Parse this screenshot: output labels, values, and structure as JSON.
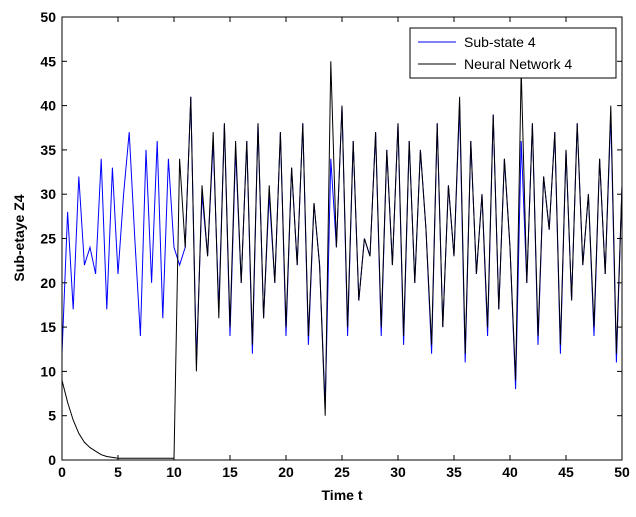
{
  "chart_data": {
    "type": "line",
    "xlabel": "Time t",
    "ylabel": "Sub-etaye Z4",
    "x": [
      0,
      0.5,
      1,
      1.5,
      2,
      2.5,
      3,
      3.5,
      4,
      4.5,
      5,
      5.5,
      6,
      6.5,
      7,
      7.5,
      8,
      8.5,
      9,
      9.5,
      10,
      10.5,
      11,
      11.5,
      12,
      12.5,
      13,
      13.5,
      14,
      14.5,
      15,
      15.5,
      16,
      16.5,
      17,
      17.5,
      18,
      18.5,
      19,
      19.5,
      20,
      20.5,
      21,
      21.5,
      22,
      22.5,
      23,
      23.5,
      24,
      24.5,
      25,
      25.5,
      26,
      26.5,
      27,
      27.5,
      28,
      28.5,
      29,
      29.5,
      30,
      30.5,
      31,
      31.5,
      32,
      32.5,
      33,
      33.5,
      34,
      34.5,
      35,
      35.5,
      36,
      36.5,
      37,
      37.5,
      38,
      38.5,
      39,
      39.5,
      40,
      40.5,
      41,
      41.5,
      42,
      42.5,
      43,
      43.5,
      44,
      44.5,
      45,
      45.5,
      46,
      46.5,
      47,
      47.5,
      48,
      48.5,
      49,
      49.5,
      50
    ],
    "series": [
      {
        "name": "Sub-state 4",
        "color": "#0000ff",
        "values": [
          12,
          28,
          17,
          32,
          22,
          24,
          21,
          34,
          17,
          33,
          21,
          30,
          37,
          25,
          14,
          35,
          20,
          36,
          16,
          34,
          24,
          22,
          24,
          41,
          11,
          30,
          23,
          36,
          17,
          38,
          14,
          35,
          20,
          36,
          12,
          38,
          16,
          30,
          20,
          37,
          14,
          33,
          22,
          38,
          13,
          29,
          22,
          6,
          34,
          24,
          40,
          14,
          36,
          18,
          25,
          23,
          37,
          14,
          35,
          22,
          38,
          13,
          36,
          20,
          35,
          26,
          12,
          38,
          15,
          31,
          23,
          40,
          11,
          36,
          21,
          30,
          14,
          39,
          17,
          34,
          24,
          8,
          36,
          20,
          38,
          13,
          32,
          26,
          37,
          12,
          35,
          18,
          38,
          22,
          30,
          14,
          34,
          21,
          39,
          11,
          31
        ]
      },
      {
        "name": "Neural Network 4",
        "color": "#000000",
        "values": [
          9,
          6.5,
          4.5,
          3,
          2,
          1.4,
          1,
          0.6,
          0.4,
          0.3,
          0.2,
          0.2,
          0.2,
          0.2,
          0.2,
          0.2,
          0.2,
          0.2,
          0.2,
          0.2,
          0.2,
          34,
          24,
          41,
          10,
          31,
          23,
          37,
          16,
          38,
          15,
          36,
          20,
          36,
          13,
          38,
          16,
          31,
          20,
          37,
          15,
          33,
          22,
          38,
          14,
          29,
          22,
          5,
          45,
          24,
          40,
          15,
          36,
          18,
          25,
          23,
          37,
          15,
          35,
          22,
          38,
          14,
          36,
          20,
          35,
          26,
          13,
          38,
          15,
          31,
          23,
          41,
          12,
          36,
          21,
          30,
          15,
          39,
          17,
          34,
          24,
          9,
          44,
          20,
          38,
          14,
          32,
          26,
          37,
          13,
          35,
          18,
          38,
          22,
          30,
          15,
          34,
          21,
          40,
          12,
          31
        ]
      }
    ],
    "xlim": [
      0,
      50
    ],
    "xticks": [
      0,
      5,
      10,
      15,
      20,
      25,
      30,
      35,
      40,
      45,
      50
    ],
    "ylim": [
      0,
      50
    ],
    "yticks": [
      0,
      5,
      10,
      15,
      20,
      25,
      30,
      35,
      40,
      45,
      50
    ],
    "grid": false,
    "legend": "top-right"
  }
}
